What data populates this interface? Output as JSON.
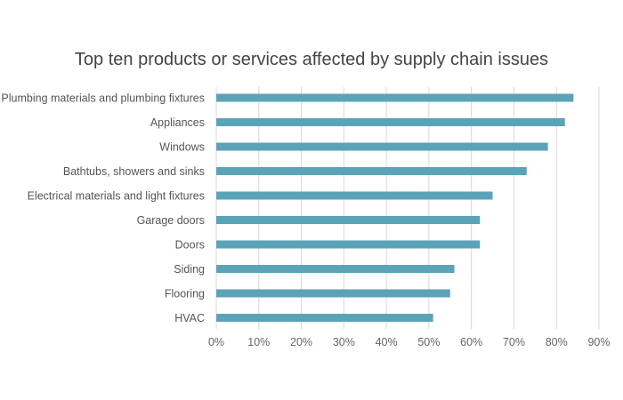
{
  "chart_data": {
    "type": "bar",
    "orientation": "horizontal",
    "title": "Top ten products or services affected by supply chain issues",
    "categories": [
      "Plumbing materials and plumbing fixtures",
      "Appliances",
      "Windows",
      "Bathtubs, showers and sinks",
      "Electrical materials and light fixtures",
      "Garage doors",
      "Doors",
      "Siding",
      "Flooring",
      "HVAC"
    ],
    "values": [
      84,
      82,
      78,
      73,
      65,
      62,
      62,
      56,
      55,
      51
    ],
    "xlim": [
      0,
      90
    ],
    "xticks": [
      "0%",
      "10%",
      "20%",
      "30%",
      "40%",
      "50%",
      "60%",
      "70%",
      "80%",
      "90%"
    ],
    "xlabel": "",
    "ylabel": "",
    "grid": "vertical",
    "bar_color": "#5BA3B8",
    "grid_color": "#d9d9d9"
  }
}
